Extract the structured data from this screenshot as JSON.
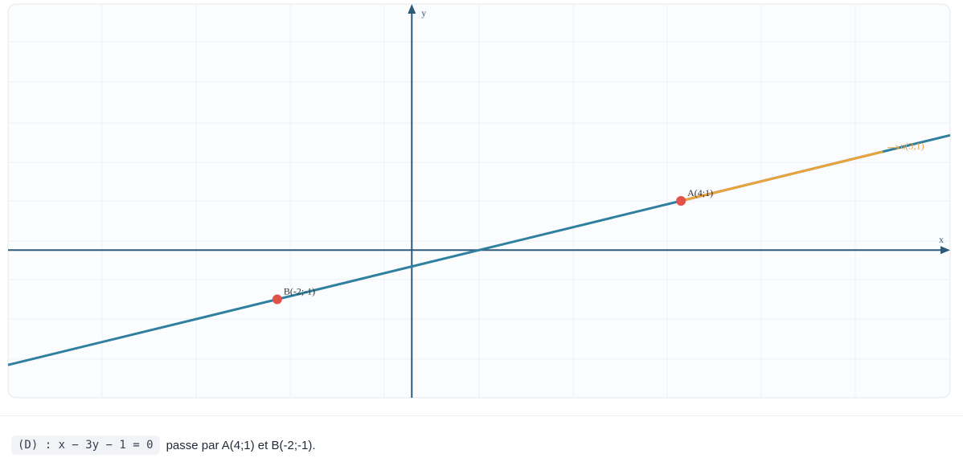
{
  "chart_data": {
    "type": "line-plot",
    "xlabel": "x",
    "ylabel": "y",
    "xlim": [
      -6,
      8
    ],
    "ylim": [
      -3,
      5
    ],
    "line_color": "#2f7f9f",
    "points": [
      {
        "label": "A(4;1)",
        "x": 4,
        "y": 1,
        "color": "#e0524a"
      },
      {
        "label": "B(-2;-1)",
        "x": -2,
        "y": -1,
        "color": "#e0524a"
      }
    ],
    "vector": {
      "label": "u(3;1)",
      "dx": 3,
      "dy": 1,
      "color": "#e8a33c"
    }
  },
  "caption": {
    "equation": "(D) : x − 3y − 1 = 0",
    "text": "passe par A(4;1) et B(-2;-1)."
  }
}
